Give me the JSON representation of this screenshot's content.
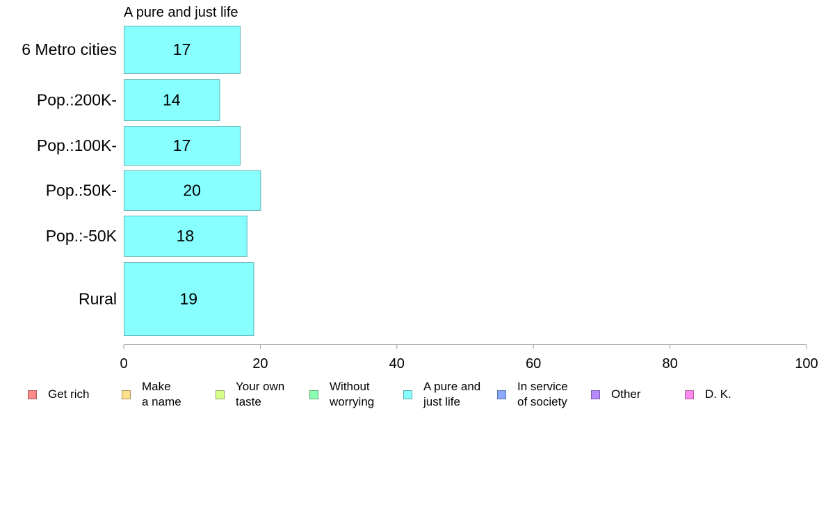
{
  "chart_data": {
    "type": "bar",
    "orientation": "horizontal",
    "title": "A pure and just life",
    "categories": [
      "6 Metro cities",
      "Pop.:200K-",
      "Pop.:100K-",
      "Pop.:50K-",
      "Pop.:-50K",
      "Rural"
    ],
    "values": [
      17,
      14,
      17,
      20,
      18,
      19
    ],
    "labels": [
      "17",
      "14",
      "17",
      "20",
      "18",
      "19"
    ],
    "xlim": [
      0,
      100
    ],
    "xticks": [
      "0",
      "20",
      "40",
      "60",
      "80",
      "100"
    ],
    "bar_color": "#88ffff",
    "bar_edge_color": "#5fb3b3",
    "grid": false,
    "legend_position": "bottom",
    "legend": [
      {
        "label": "Get rich",
        "color": "#ff8a8a"
      },
      {
        "label": "Make\na name",
        "color": "#ffe08a"
      },
      {
        "label": "Your own\ntaste",
        "color": "#d8ff8a"
      },
      {
        "label": "Without\nworrying",
        "color": "#8affb0"
      },
      {
        "label": "A pure and\njust life",
        "color": "#88ffff"
      },
      {
        "label": "In service\nof society",
        "color": "#8aaaff"
      },
      {
        "label": "Other",
        "color": "#b98aff"
      },
      {
        "label": "D. K.",
        "color": "#ff8aee"
      }
    ]
  }
}
